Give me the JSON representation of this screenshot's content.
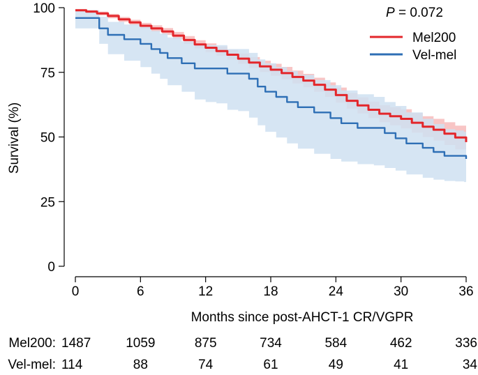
{
  "chart_data": {
    "type": "line",
    "subtype": "kaplan-meier",
    "title": "",
    "xlabel": "Months since post-AHCT-1 CR/VGPR",
    "ylabel": "Survival (%)",
    "xlim": [
      0,
      36
    ],
    "ylim": [
      0,
      100
    ],
    "xticks": [
      0,
      6,
      12,
      18,
      24,
      30,
      36
    ],
    "yticks": [
      0,
      25,
      50,
      75,
      100
    ],
    "xtick_labels": [
      "0",
      "6",
      "12",
      "18",
      "24",
      "30",
      "36"
    ],
    "ytick_labels": [
      "0",
      "25",
      "50",
      "75",
      "100"
    ],
    "pvalue": {
      "label": "P",
      "text": " = 0.072"
    },
    "legend_position": "top-right",
    "series": [
      {
        "name": "Mel200",
        "color": "#e3262b",
        "band_color": "#f4a6a6",
        "x": [
          0,
          1,
          2,
          3,
          4,
          5,
          6,
          7,
          8,
          9,
          10,
          11,
          12,
          13,
          14,
          15,
          16,
          17,
          18,
          19,
          20,
          21,
          22,
          23,
          24,
          25,
          26,
          27,
          28,
          29,
          30,
          31,
          32,
          33,
          34,
          35,
          36
        ],
        "y": [
          99,
          98.5,
          97.8,
          96.8,
          95.5,
          94.3,
          93,
          92,
          90.8,
          89.2,
          87.5,
          85.8,
          84.5,
          83.2,
          81.8,
          80.3,
          78.8,
          77.3,
          76,
          74.7,
          73.2,
          71.8,
          70.2,
          68.3,
          66.2,
          64,
          62.2,
          60.5,
          59,
          58,
          57,
          55.5,
          54,
          52.8,
          51.3,
          49.8,
          48
        ],
        "lower": [
          98.5,
          97.8,
          97,
          95.9,
          94.5,
          93.2,
          91.9,
          90.8,
          89.5,
          87.8,
          86,
          84.2,
          82.8,
          81.4,
          79.9,
          78.3,
          76.7,
          75.1,
          73.7,
          72.3,
          70.7,
          69.2,
          67.5,
          65.5,
          63.3,
          61,
          59.1,
          57.3,
          55.7,
          54.5,
          53.3,
          51.7,
          50,
          48.6,
          46.9,
          45.2,
          43.2
        ],
        "upper": [
          99.5,
          99.1,
          98.5,
          97.6,
          96.4,
          95.3,
          94.1,
          93.2,
          92.1,
          90.6,
          89,
          87.4,
          86.2,
          85,
          83.7,
          82.3,
          80.9,
          79.5,
          78.3,
          77.1,
          75.7,
          74.4,
          72.9,
          71.1,
          69.1,
          67,
          65.3,
          63.7,
          62.3,
          61.5,
          60.7,
          59.3,
          58,
          57,
          55.7,
          54.4,
          52.8
        ]
      },
      {
        "name": "Vel-mel",
        "color": "#2e6fb5",
        "band_color": "#cfe0f1",
        "x": [
          0,
          1.8,
          2.2,
          3,
          4.5,
          6,
          7,
          7.8,
          8.5,
          9.8,
          11,
          12,
          13,
          14,
          15,
          16,
          16.8,
          17.5,
          18.5,
          19.5,
          20.5,
          22,
          23.5,
          24.5,
          26,
          27.5,
          28.5,
          29.5,
          30.5,
          32,
          33,
          34,
          35,
          35.8,
          36
        ],
        "y": [
          96,
          96,
          92,
          89.5,
          87.8,
          86,
          84,
          82.5,
          80.5,
          78.5,
          76.5,
          76.5,
          76.5,
          74.5,
          74.5,
          72.5,
          69.5,
          67.5,
          65.5,
          63.5,
          61.5,
          59.5,
          57.3,
          55.3,
          53.5,
          53.5,
          51.5,
          49.5,
          47.5,
          45.8,
          44.2,
          42.7,
          42.7,
          42.7,
          41.5
        ],
        "lower": [
          92,
          92,
          86,
          82,
          79.5,
          77,
          74.5,
          72.5,
          70,
          67.5,
          64.5,
          63.5,
          63,
          60.5,
          60,
          57.5,
          54.5,
          52,
          49.8,
          47.5,
          45.5,
          43.5,
          41.5,
          40.5,
          39.5,
          39,
          38,
          37,
          35.5,
          34.2,
          33.5,
          33,
          32.8,
          32.6,
          31.5
        ],
        "upper": [
          99,
          99,
          96.5,
          94.5,
          93.5,
          92.5,
          91,
          90,
          88.5,
          87,
          85.5,
          85.5,
          85.5,
          84,
          84,
          82.5,
          80,
          78.5,
          77,
          75.5,
          74,
          72,
          70,
          68,
          66.5,
          65.5,
          63.5,
          62,
          59.5,
          57,
          55,
          53,
          52.5,
          52,
          51
        ]
      }
    ],
    "risk_table": {
      "times": [
        0,
        6,
        12,
        18,
        24,
        30,
        36
      ],
      "rows": [
        {
          "label": "Mel200:",
          "counts": [
            "1487",
            "1059",
            "875",
            "734",
            "584",
            "462",
            "336"
          ]
        },
        {
          "label": "Vel-mel:",
          "counts": [
            "114",
            "88",
            "74",
            "61",
            "49",
            "41",
            "34"
          ]
        }
      ]
    }
  }
}
